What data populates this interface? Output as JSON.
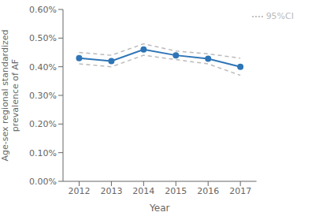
{
  "chart_data": {
    "type": "line",
    "x": [
      2012,
      2013,
      2014,
      2015,
      2016,
      2017
    ],
    "series": [
      {
        "name": "95%CI",
        "color": "#BBBBBB",
        "line_style": "dashed",
        "values": [
          0.0045,
          0.0044,
          0.0048,
          0.00455,
          0.00445,
          0.0043
        ]
      },
      {
        "color": "#BBBBBB",
        "line_style": "dashed",
        "values": [
          0.0041,
          0.004,
          0.0044,
          0.00425,
          0.0041,
          0.0037
        ]
      },
      {
        "color": "#2E75B6",
        "line_style": "solid",
        "marker": "circle",
        "values": [
          0.0043,
          0.0042,
          0.0046,
          0.0044,
          0.00428,
          0.004
        ]
      }
    ],
    "xlabel": "Year",
    "ylabel": "Age-sex regional standardized\nprevalence of AF",
    "xlim": [
      2011.5,
      2017.5
    ],
    "xticks": [
      2012,
      2013,
      2014,
      2015,
      2016,
      2017
    ],
    "ylim": [
      0.0,
      0.006
    ],
    "yticks": [
      {
        "value": 0.0,
        "label": "0.00%"
      },
      {
        "value": 0.001,
        "label": "0.10%"
      },
      {
        "value": 0.002,
        "label": "0.20%"
      },
      {
        "value": 0.003,
        "label": "0.30%"
      },
      {
        "value": 0.004,
        "label": "0.40%"
      },
      {
        "value": 0.005,
        "label": "0.50%"
      },
      {
        "value": 0.006,
        "label": "0.60%"
      }
    ],
    "grid": false,
    "legend": "upper right"
  }
}
